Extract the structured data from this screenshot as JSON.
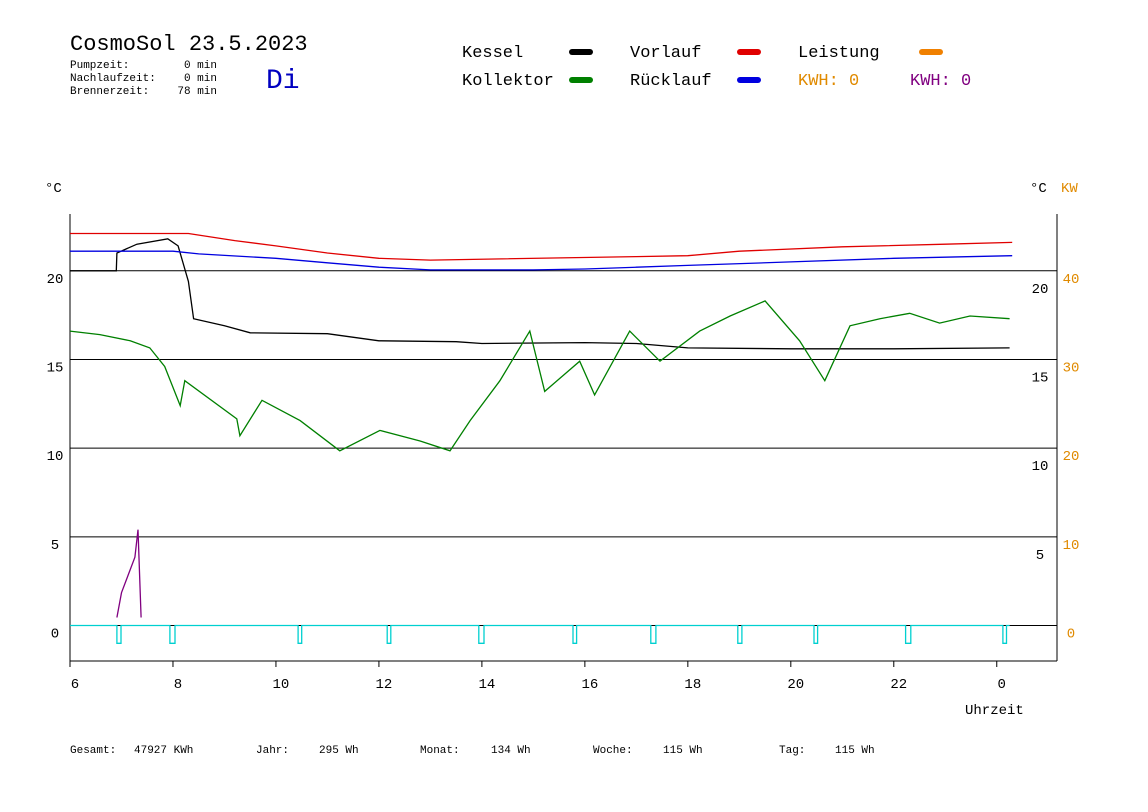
{
  "chart_data": {
    "type": "line",
    "title": "CosmoSol 23.5.2023",
    "day": "Di",
    "info": [
      [
        "Pumpzeit:",
        "0 min"
      ],
      [
        "Nachlaufzeit:",
        "0 min"
      ],
      [
        "Brennerzeit:",
        "78 min"
      ]
    ],
    "footer": [
      [
        "Gesamt:",
        "47927 KWh"
      ],
      [
        "Jahr:",
        "295 Wh"
      ],
      [
        "Monat:",
        "134 Wh"
      ],
      [
        "Woche:",
        "115 Wh"
      ],
      [
        "Tag:",
        "115 Wh"
      ]
    ],
    "annotations": [
      {
        "text": "KWH: 0",
        "color": "#e08a00"
      },
      {
        "text": "KWH: 0",
        "color": "#800080"
      }
    ],
    "ylabel": "°C",
    "y2label": "KW",
    "xlabel": "Uhrzeit",
    "xlim": [
      6,
      25.17
    ],
    "xticks": [
      6,
      8,
      10,
      12,
      14,
      16,
      18,
      20,
      22,
      {
        "value": 24,
        "label": "0"
      }
    ],
    "ylim": [
      -2,
      23.2
    ],
    "yticks": [
      0,
      5,
      10,
      15,
      20
    ],
    "y2lim": [
      -4,
      46.4
    ],
    "y2ticks": [
      0,
      10,
      20,
      30,
      40
    ],
    "y2color": "#e08a00",
    "grid": true,
    "series": [
      {
        "name": "Kessel",
        "color": "#000000",
        "x": [
          6,
          6.9,
          6.91,
          7.3,
          7.9,
          8.1,
          8.3,
          8.4,
          9,
          9.5,
          11,
          12,
          13.5,
          14,
          16,
          17,
          18,
          20,
          22,
          24.25
        ],
        "values": [
          20.0,
          20.0,
          21.0,
          21.5,
          21.8,
          21.4,
          19.4,
          17.3,
          16.9,
          16.5,
          16.45,
          16.05,
          16.0,
          15.9,
          15.95,
          15.9,
          15.65,
          15.6,
          15.6,
          15.65
        ]
      },
      {
        "name": "Kollektor",
        "color": "#008000",
        "x": [
          6.0,
          6.58,
          7.17,
          7.55,
          7.84,
          8.14,
          8.23,
          9.24,
          9.3,
          9.73,
          10.47,
          11.24,
          12.02,
          12.8,
          13.38,
          13.77,
          14.35,
          14.93,
          15.22,
          15.9,
          16.19,
          16.87,
          17.46,
          18.23,
          18.82,
          19.5,
          20.17,
          20.66,
          21.15,
          21.73,
          22.31,
          22.89,
          23.48,
          24.25
        ],
        "values": [
          16.6,
          16.4,
          16.05,
          15.65,
          14.6,
          12.4,
          13.8,
          11.65,
          10.7,
          12.7,
          11.55,
          9.85,
          11.0,
          10.4,
          9.85,
          11.55,
          13.8,
          16.6,
          13.2,
          14.9,
          13.0,
          16.6,
          14.9,
          16.6,
          17.45,
          18.3,
          16.05,
          13.8,
          16.9,
          17.3,
          17.6,
          17.05,
          17.45,
          17.3
        ]
      },
      {
        "name": "Vorlauf",
        "color": "#e00000",
        "x": [
          6,
          8.3,
          9.2,
          10,
          11,
          12,
          13,
          17,
          18,
          19,
          21,
          23,
          24.3
        ],
        "values": [
          22.1,
          22.1,
          21.7,
          21.4,
          21.0,
          20.7,
          20.6,
          20.8,
          20.85,
          21.1,
          21.35,
          21.5,
          21.6
        ]
      },
      {
        "name": "Rücklauf",
        "color": "#0000e0",
        "x": [
          6,
          8,
          8.5,
          10,
          11,
          12,
          13,
          15,
          16,
          17,
          18,
          20,
          22,
          24.3
        ],
        "values": [
          21.1,
          21.1,
          20.95,
          20.7,
          20.45,
          20.2,
          20.05,
          20.05,
          20.1,
          20.2,
          20.3,
          20.5,
          20.7,
          20.85
        ]
      },
      {
        "name": "Leistung",
        "color": "#f08000",
        "axis": "y2",
        "x": [],
        "values": []
      },
      {
        "color": "#800080",
        "axis": "y2",
        "x": [
          6.91,
          7.0,
          7.26,
          7.32,
          7.38
        ],
        "values": [
          0.9,
          3.7,
          7.7,
          10.8,
          0.9
        ]
      },
      {
        "color": "#00d0d0",
        "x": [
          6,
          6.91,
          6.91,
          6.99,
          6.99,
          7.94,
          7.94,
          8.04,
          8.04,
          10.43,
          10.43,
          10.5,
          10.5,
          12.16,
          12.16,
          12.23,
          12.23,
          13.94,
          13.94,
          14.04,
          14.04,
          15.77,
          15.77,
          15.84,
          15.84,
          17.28,
          17.28,
          17.38,
          17.38,
          18.97,
          18.97,
          19.05,
          19.05,
          20.45,
          20.45,
          20.52,
          20.52,
          22.23,
          22.23,
          22.33,
          22.33,
          24.12,
          24.12,
          24.19,
          24.19,
          24.25
        ],
        "values": [
          0,
          0,
          -1,
          -1,
          0,
          0,
          -1,
          -1,
          0,
          0,
          -1,
          -1,
          0,
          0,
          -1,
          -1,
          0,
          0,
          -1,
          -1,
          0,
          0,
          -1,
          -1,
          0,
          0,
          -1,
          -1,
          0,
          0,
          -1,
          -1,
          0,
          0,
          -1,
          -1,
          0,
          0,
          -1,
          -1,
          0,
          0,
          -1,
          -1,
          0,
          0
        ]
      }
    ]
  }
}
